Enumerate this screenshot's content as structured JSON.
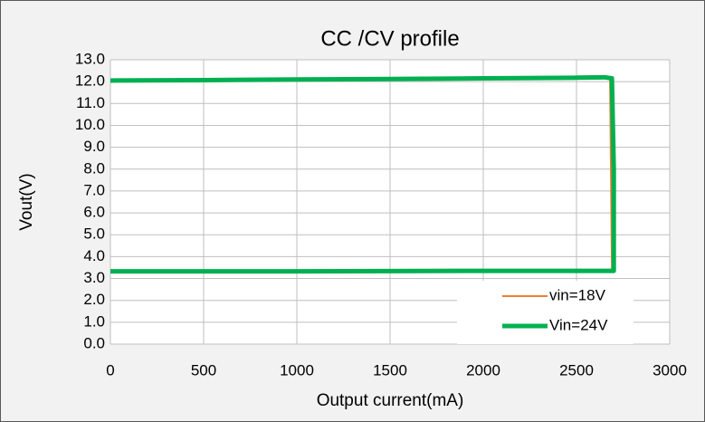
{
  "chart_data": {
    "type": "line",
    "title": "CC /CV profile",
    "xlabel": "Output current(mA)",
    "ylabel": "Vout(V)",
    "xlim": [
      0,
      3000
    ],
    "xticks": [
      0,
      500,
      1000,
      1500,
      2000,
      2500,
      3000
    ],
    "ylim": [
      0,
      13
    ],
    "yticks": [
      {
        "value": 0,
        "label": "0.0"
      },
      {
        "value": 1,
        "label": "1.0"
      },
      {
        "value": 2,
        "label": "2.0"
      },
      {
        "value": 3,
        "label": "3.0"
      },
      {
        "value": 4,
        "label": "4.0"
      },
      {
        "value": 5,
        "label": "5.0"
      },
      {
        "value": 6,
        "label": "6.0"
      },
      {
        "value": 7,
        "label": "7.0"
      },
      {
        "value": 8,
        "label": "8.0"
      },
      {
        "value": 9,
        "label": "9.0"
      },
      {
        "value": 10,
        "label": "10.0"
      },
      {
        "value": 11,
        "label": "11.0"
      },
      {
        "value": 12,
        "label": "12.0"
      },
      {
        "value": 13,
        "label": "13.0"
      }
    ],
    "grid": true,
    "legend": "lower right",
    "series": [
      {
        "name": "vin=18V",
        "color": "#ed7d31",
        "x": [
          0,
          1000,
          2000,
          2650,
          2680,
          2690,
          2000,
          0
        ],
        "values": [
          12.05,
          12.1,
          12.15,
          12.18,
          12.1,
          3.35,
          3.35,
          3.33
        ]
      },
      {
        "name": "Vin=24V",
        "color": "#00b050",
        "x": [
          0,
          500,
          1000,
          1500,
          2000,
          2500,
          2650,
          2690,
          2700,
          2700,
          2500,
          2000,
          1000,
          0
        ],
        "values": [
          12.05,
          12.07,
          12.1,
          12.12,
          12.15,
          12.18,
          12.2,
          12.15,
          8.0,
          3.35,
          3.35,
          3.35,
          3.33,
          3.33
        ]
      }
    ]
  }
}
